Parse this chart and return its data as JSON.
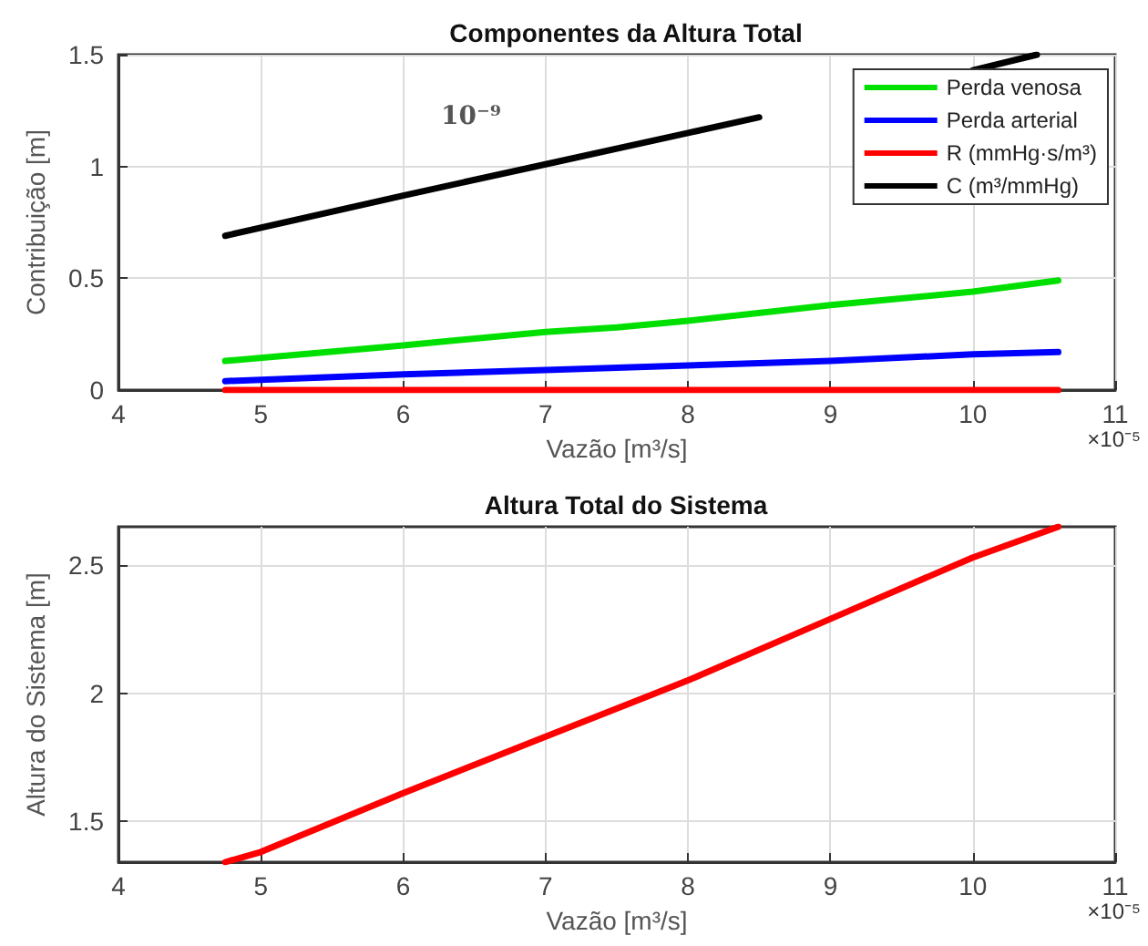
{
  "chart_data": [
    {
      "type": "line",
      "title": "Componentes da Altura Total",
      "xlabel": "Vazão [m³/s]",
      "ylabel": "Contribuição [m]",
      "xlim": [
        4,
        11
      ],
      "xticks": [
        4,
        5,
        6,
        7,
        8,
        9,
        10,
        11
      ],
      "ylim": [
        0,
        1.5
      ],
      "yticks": [
        0,
        0.5,
        1,
        1.5
      ],
      "grid": true,
      "legend": "top right",
      "marker": "none",
      "line_style": "solid",
      "annotations": [
        "10⁻⁹",
        "×10⁻⁵"
      ],
      "series": [
        {
          "name": "Perda venosa",
          "color": "#00e000",
          "x": [
            4.75,
            6,
            7,
            7.5,
            8,
            9,
            10,
            10.6
          ],
          "values": [
            0.13,
            0.2,
            0.26,
            0.28,
            0.31,
            0.38,
            0.44,
            0.49
          ]
        },
        {
          "name": "Perda arterial",
          "color": "#0000ff",
          "x": [
            4.75,
            6,
            7,
            8,
            9,
            10,
            10.6
          ],
          "values": [
            0.04,
            0.07,
            0.09,
            0.11,
            0.13,
            0.16,
            0.17
          ]
        },
        {
          "name": "R (mmHg·s/m³)",
          "color": "#ff0000",
          "x": [
            4.75,
            10.6
          ],
          "values": [
            0,
            0
          ]
        },
        {
          "name": "C (m³/mmHg)",
          "color": "#000000",
          "x": [
            4.75,
            6,
            7,
            8,
            8.5,
            9,
            9.5,
            10,
            10.45
          ],
          "values": [
            0.69,
            0.87,
            1.01,
            1.15,
            1.22,
            null,
            null,
            1.43,
            1.5
          ]
        }
      ]
    },
    {
      "type": "line",
      "title": "Altura Total do Sistema",
      "xlabel": "Vazão [m³/s]",
      "ylabel": "Altura do Sistema [m]",
      "xlim": [
        4,
        11
      ],
      "xticks": [
        4,
        5,
        6,
        7,
        8,
        9,
        10,
        11
      ],
      "ylim": [
        1.34,
        2.65
      ],
      "yticks": [
        1.5,
        2,
        2.5
      ],
      "grid": true,
      "marker": "none",
      "line_style": "solid",
      "annotations": [
        "×10⁻⁵"
      ],
      "series": [
        {
          "color": "#ff0000",
          "x": [
            4.75,
            5,
            6,
            7,
            8,
            9,
            10,
            10.6
          ],
          "values": [
            1.34,
            1.38,
            1.61,
            1.83,
            2.05,
            2.29,
            2.53,
            2.65
          ]
        }
      ]
    }
  ]
}
